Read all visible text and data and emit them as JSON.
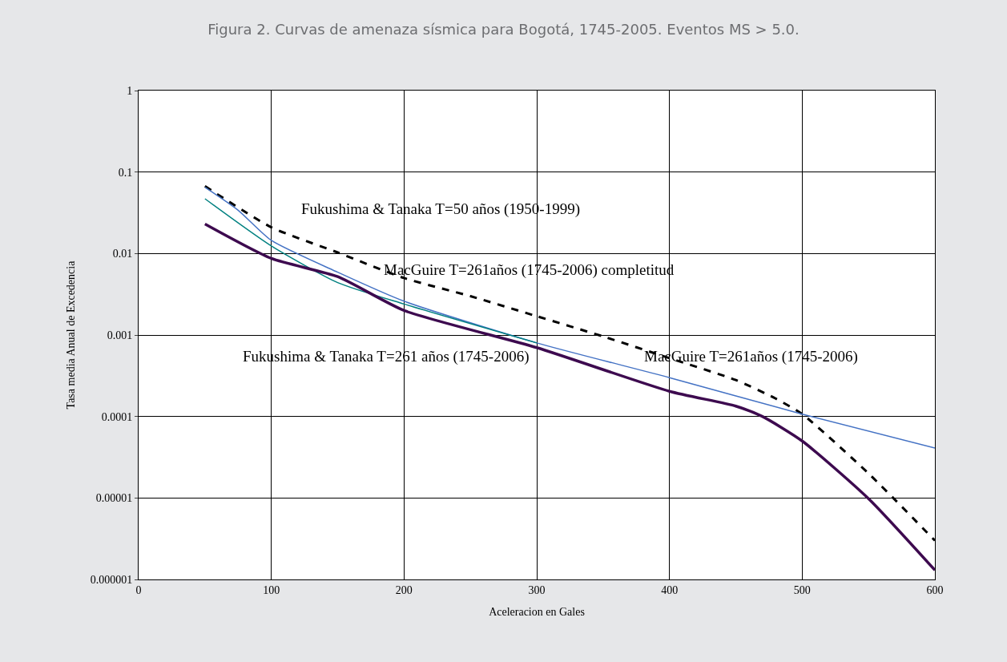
{
  "chart_data": {
    "type": "line",
    "title": "Figura 2. Curvas de amenaza sísmica para Bogotá, 1745-2005. Eventos MS > 5.0.",
    "xlabel": "Aceleracion en Gales",
    "ylabel": "Tasa media Anual de Excedencia",
    "log": "y",
    "grid": true,
    "marker": "none",
    "xlim": [
      0,
      600
    ],
    "xticks": [
      0,
      100,
      200,
      300,
      400,
      500,
      600
    ],
    "ylim": [
      1e-06,
      1
    ],
    "yticks": [
      {
        "value": 1e-06,
        "label": "0.000001"
      },
      {
        "value": 1e-05,
        "label": "0.00001"
      },
      {
        "value": 0.0001,
        "label": "0.0001"
      },
      {
        "value": 0.001,
        "label": "0.001"
      },
      {
        "value": 0.01,
        "label": "0.01"
      },
      {
        "value": 0.1,
        "label": "0.1"
      },
      1
    ],
    "series": [
      {
        "color": "#000000",
        "line_style": "dashed",
        "x": [
          50,
          100,
          150,
          200,
          250,
          300,
          350,
          400,
          450,
          480,
          500,
          550,
          600
        ],
        "values": [
          0.067,
          0.021,
          0.0103,
          0.005,
          0.003,
          0.0017,
          0.00096,
          0.00052,
          0.00028,
          0.000166,
          0.000107,
          2e-05,
          3e-06
        ]
      },
      {
        "color": "#4472c4",
        "line_style": "solid",
        "x": [
          50,
          75,
          100,
          150,
          200,
          300,
          400,
          500,
          600
        ],
        "values": [
          0.065,
          0.034,
          0.0145,
          0.0059,
          0.0026,
          0.0008,
          0.0003,
          0.000107,
          4.1e-05
        ]
      },
      {
        "color": "#008080",
        "line_style": "solid",
        "x": [
          50,
          100,
          150,
          200,
          300
        ],
        "values": [
          0.047,
          0.0124,
          0.0044,
          0.0024,
          0.0008
        ]
      },
      {
        "color": "#3d0a4f",
        "line_style": "solid",
        "x": [
          50,
          100,
          150,
          200,
          300,
          400,
          450,
          470,
          500,
          550,
          600
        ],
        "values": [
          0.023,
          0.0087,
          0.0052,
          0.002,
          0.0007,
          0.000204,
          0.000134,
          0.0001,
          5e-05,
          9.8e-06,
          1.3e-06
        ]
      }
    ],
    "annotations": [
      "Fukushima & Tanaka T=50 años (1950-1999)",
      "MacGuire T=261años (1745-2006) completitud",
      "Fukushima & Tanaka T=261 años (1745-2006)",
      "MacGuire T=261años (1745-2006)"
    ]
  }
}
